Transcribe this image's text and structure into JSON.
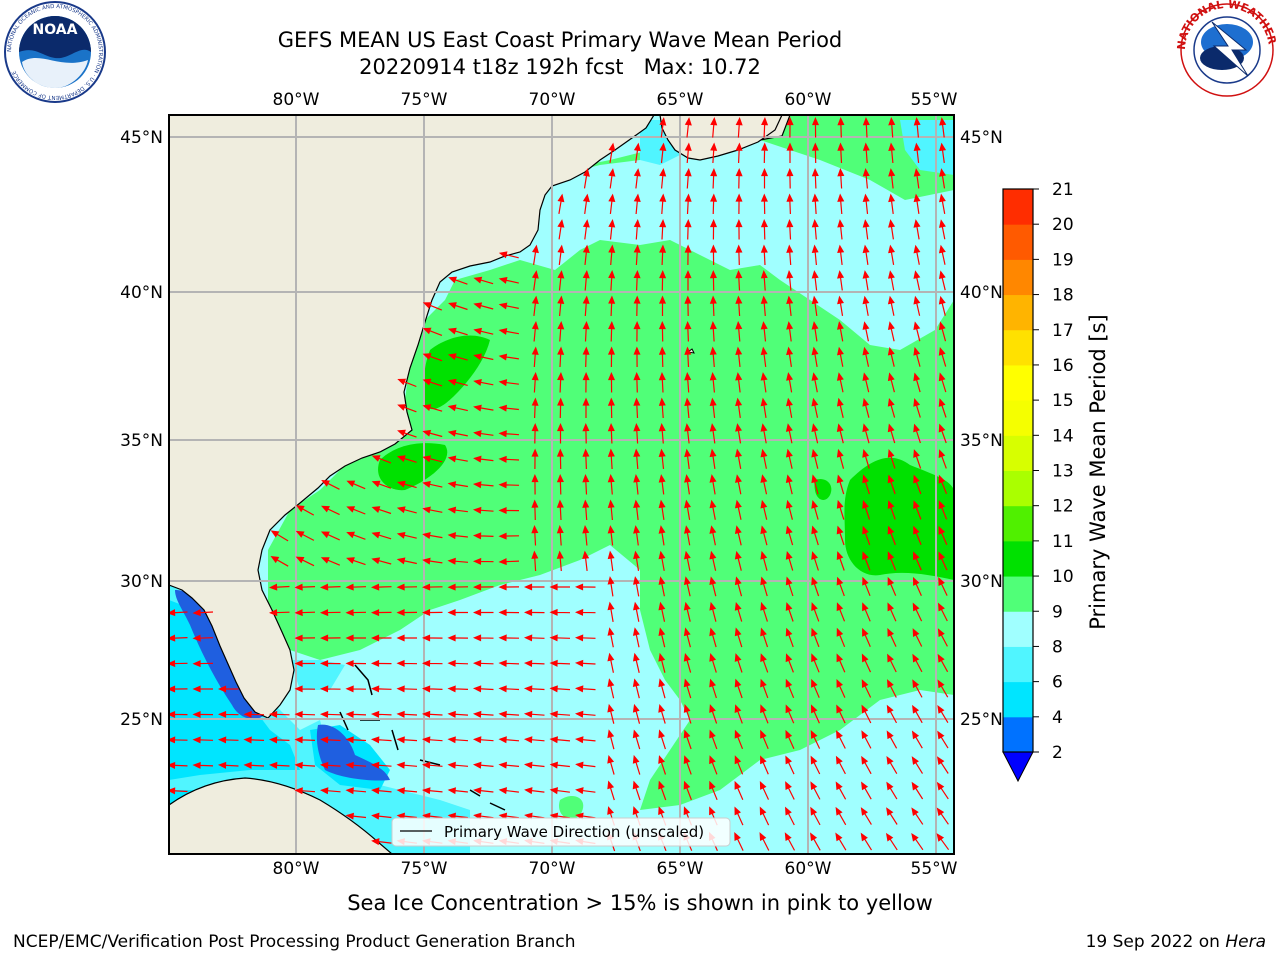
{
  "header": {
    "title": "GEFS MEAN US East Coast Primary Wave Mean Period",
    "subtitle": "20220914 t18z 192h fcst   Max: 10.72"
  },
  "logos": {
    "left_text": "NOAA",
    "left_ring_text": "NATIONAL OCEANIC AND ATMOSPHERIC ADMINISTRATION · U.S. DEPARTMENT OF COMMERCE",
    "right_ring_text": "NATIONAL WEATHER SERVICE"
  },
  "map": {
    "lon_labels": [
      "80°W",
      "75°W",
      "70°W",
      "65°W",
      "60°W",
      "55°W"
    ],
    "lat_labels": [
      "45°N",
      "40°N",
      "35°N",
      "30°N",
      "25°N"
    ],
    "legend_label": "Primary Wave Direction (unscaled)",
    "arrow_color": "#ff0000",
    "land_color": "#efedde"
  },
  "colorbar": {
    "label": "Primary Wave Mean Period [s]",
    "ticks": [
      "2",
      "4",
      "6",
      "8",
      "9",
      "10",
      "11",
      "12",
      "13",
      "14",
      "15",
      "16",
      "17",
      "18",
      "19",
      "20",
      "21"
    ],
    "colors": [
      "#0072ff",
      "#00e5ff",
      "#50f5ff",
      "#a0ffff",
      "#50ff78",
      "#00e100",
      "#50f000",
      "#aaff00",
      "#d7ff00",
      "#f5ff00",
      "#ffff00",
      "#ffe100",
      "#ffb400",
      "#ff8700",
      "#ff5a00",
      "#ff2d00"
    ],
    "extend_color": "#0000ff"
  },
  "note": "Sea Ice Concentration > 15% is shown in pink to yellow",
  "footer": {
    "left": "NCEP/EMC/Verification Post Processing Product Generation Branch",
    "right_date": "19 Sep 2022 on ",
    "right_host": "Hera"
  }
}
